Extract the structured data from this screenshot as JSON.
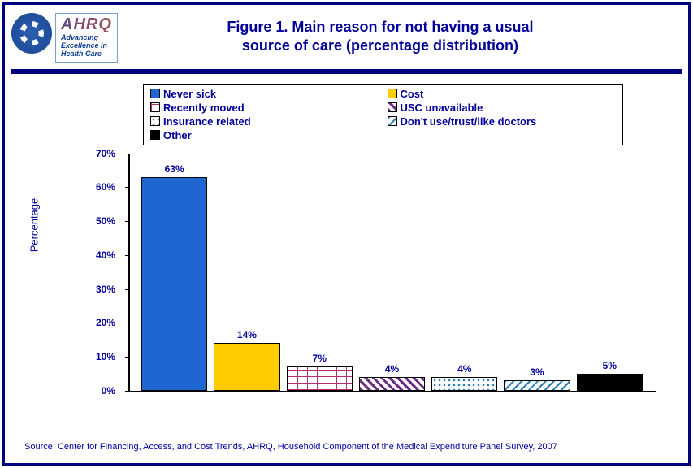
{
  "header": {
    "logo_tag_l1": "Advancing",
    "logo_tag_l2": "Excellence in",
    "logo_tag_l3": "Health Care",
    "ahrq": "AHRQ",
    "title_l1": "Figure 1. Main reason for not having a usual",
    "title_l2": "source of care (percentage distribution)"
  },
  "chart": {
    "type": "bar",
    "ylabel": "Percentage",
    "ylim": [
      0,
      70
    ],
    "ytick_step": 10,
    "yticks": [
      0,
      10,
      20,
      30,
      40,
      50,
      60,
      70
    ],
    "legend": [
      {
        "label": "Never sick",
        "fill": "fill-solid-blue"
      },
      {
        "label": "Cost",
        "fill": "fill-solid-yellow"
      },
      {
        "label": "Recently moved",
        "fill": "fill-brick"
      },
      {
        "label": "USC unavailable",
        "fill": "fill-diag-purple"
      },
      {
        "label": "Insurance related",
        "fill": "fill-dots"
      },
      {
        "label": "Don't use/trust/like doctors",
        "fill": "fill-hatch-blue"
      },
      {
        "label": "Other",
        "fill": "fill-solid-black"
      }
    ],
    "bars": [
      {
        "value": 63,
        "label": "63%",
        "fill": "fill-solid-blue"
      },
      {
        "value": 14,
        "label": "14%",
        "fill": "fill-solid-yellow"
      },
      {
        "value": 7,
        "label": "7%",
        "fill": "fill-brick"
      },
      {
        "value": 4,
        "label": "4%",
        "fill": "fill-diag-purple"
      },
      {
        "value": 4,
        "label": "4%",
        "fill": "fill-dots"
      },
      {
        "value": 3,
        "label": "3%",
        "fill": "fill-hatch-blue"
      },
      {
        "value": 5,
        "label": "5%",
        "fill": "fill-solid-black"
      }
    ],
    "colors": {
      "title": "#000099",
      "border": "#000080",
      "axis": "#000000",
      "blue": "#1f66d0",
      "yellow": "#ffcc00",
      "brick": "#b03070",
      "purple": "#6a2d82",
      "teal": "#2a7fb8",
      "black": "#000000"
    }
  },
  "source": "Source: Center for Financing, Access, and Cost Trends, AHRQ, Household Component of the Medical Expenditure Panel Survey, 2007"
}
